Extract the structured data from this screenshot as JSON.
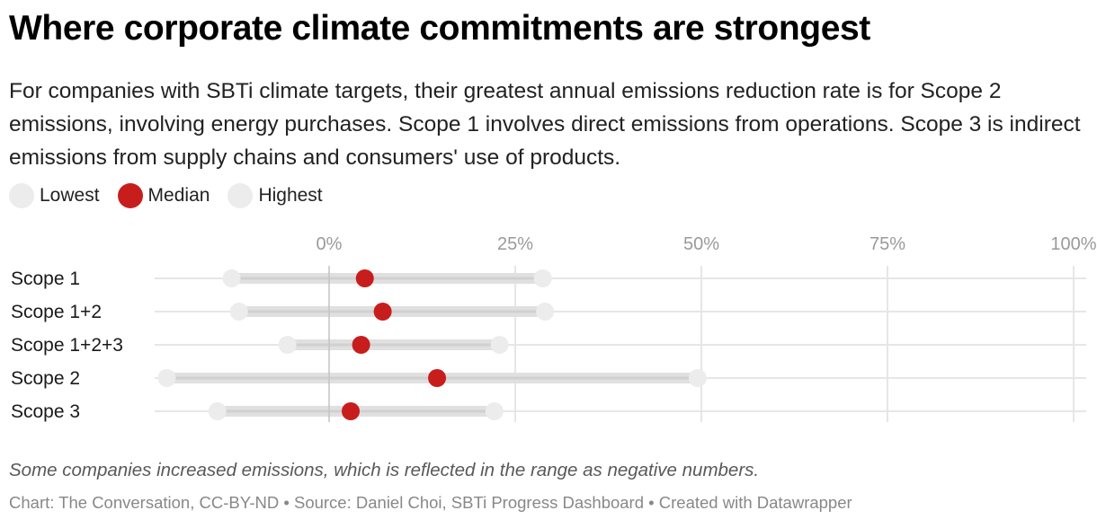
{
  "header": {
    "title": "Where corporate climate commitments are strongest",
    "subtitle": "For companies with SBTi climate targets, their greatest annual emissions reduction rate is for Scope 2 emissions, involving energy purchases. Scope 1 involves direct emissions from operations. Scope 3 is indirect emissions from supply chains and consumers' use of products."
  },
  "legend": [
    {
      "label": "Lowest",
      "color": "#ececec"
    },
    {
      "label": "Median",
      "color": "#c71e1d"
    },
    {
      "label": "Highest",
      "color": "#ececec"
    }
  ],
  "footer": {
    "notes": "Some companies increased emissions, which is reflected in the range as negative numbers.",
    "byline": "Chart: The Conversation, CC-BY-ND • Source: Daniel Choi, SBTi Progress Dashboard • Created with Datawrapper"
  },
  "colors": {
    "median": "#c71e1d",
    "endpoint": "#ececec",
    "range_bar": "#e0e0e0",
    "range_center": "#d0d0d0",
    "row_line": "#e6e6e6",
    "grid": "#e6e6e6",
    "zero_line": "#c4c4c4",
    "tick_text": "#9a9a9a"
  },
  "chart_data": {
    "type": "range-dot",
    "title": "Where corporate climate commitments are strongest",
    "xlabel": "",
    "ylabel": "",
    "xlim": [
      -25,
      100
    ],
    "x_ticks": [
      0,
      25,
      50,
      75,
      100
    ],
    "x_tick_labels": [
      "0%",
      "25%",
      "50%",
      "75%",
      "100%"
    ],
    "grid": true,
    "legend_position": "top-left",
    "categories": [
      "Scope 1",
      "Scope 1+2",
      "Scope 1+2+3",
      "Scope 2",
      "Scope 3"
    ],
    "series": [
      {
        "name": "Lowest",
        "values": [
          -13.1,
          -12.1,
          -5.6,
          -21.8,
          -15.0
        ]
      },
      {
        "name": "Median",
        "values": [
          4.8,
          7.2,
          4.3,
          14.5,
          2.9
        ]
      },
      {
        "name": "Highest",
        "values": [
          28.7,
          29.0,
          22.9,
          49.5,
          22.2
        ]
      }
    ]
  }
}
